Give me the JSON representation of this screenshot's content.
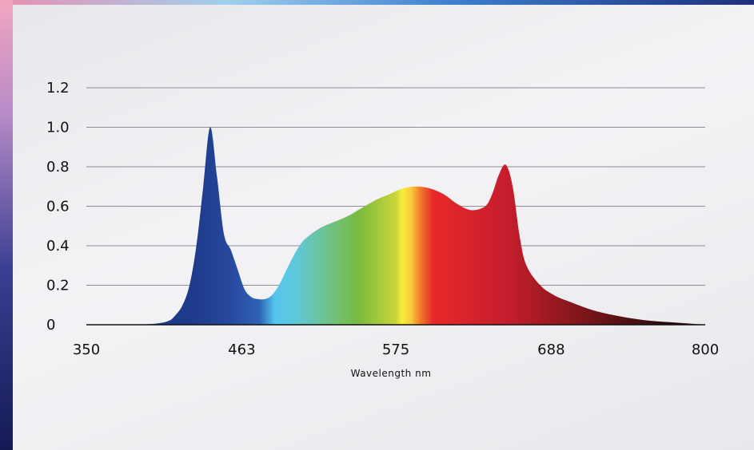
{
  "chart_data": {
    "type": "area",
    "title": "",
    "xlabel": "Wavelength nm",
    "ylabel": "",
    "xlim": [
      350,
      800
    ],
    "ylim": [
      0,
      1.2
    ],
    "grid": true,
    "x_ticks": [
      "350",
      "463",
      "575",
      "688",
      "800"
    ],
    "y_ticks": [
      "0",
      "0.2",
      "0.4",
      "0.6",
      "0.8",
      "1.0",
      "1.2"
    ],
    "series": [
      {
        "x": [
          350,
          380,
          400,
          410,
          415,
          420,
          425,
          430,
          435,
          440,
          445,
          450,
          455,
          460,
          465,
          470,
          475,
          480,
          485,
          490,
          495,
          500,
          505,
          510,
          520,
          530,
          540,
          550,
          560,
          570,
          580,
          590,
          600,
          610,
          620,
          630,
          640,
          645,
          650,
          655,
          660,
          665,
          670,
          680,
          690,
          700,
          720,
          740,
          760,
          780,
          800
        ],
        "y": [
          0,
          0,
          0.005,
          0.02,
          0.05,
          0.1,
          0.2,
          0.4,
          0.7,
          1.0,
          0.75,
          0.46,
          0.38,
          0.28,
          0.18,
          0.14,
          0.13,
          0.13,
          0.15,
          0.2,
          0.27,
          0.34,
          0.4,
          0.44,
          0.49,
          0.52,
          0.55,
          0.59,
          0.63,
          0.66,
          0.69,
          0.7,
          0.69,
          0.66,
          0.61,
          0.58,
          0.6,
          0.66,
          0.76,
          0.81,
          0.7,
          0.45,
          0.3,
          0.2,
          0.15,
          0.12,
          0.07,
          0.04,
          0.02,
          0.01,
          0
        ]
      }
    ]
  }
}
